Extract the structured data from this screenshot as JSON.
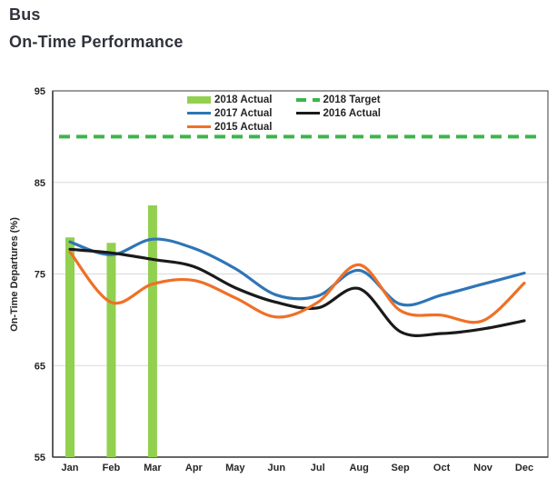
{
  "header": {
    "title": "Bus",
    "subtitle": "On-Time Performance"
  },
  "chart_data": {
    "type": "line",
    "title": "Bus On-Time Performance",
    "xlabel": "",
    "ylabel": "On-Time Departures (%)",
    "ylim": [
      55,
      95
    ],
    "yticks": [
      55,
      65,
      75,
      85,
      95
    ],
    "gridlines_y": [
      65,
      75,
      85
    ],
    "grid": "horizontal-only",
    "legend_position": "top-center",
    "categories": [
      "Jan",
      "Feb",
      "Mar",
      "Apr",
      "May",
      "Jun",
      "Jul",
      "Aug",
      "Sep",
      "Oct",
      "Nov",
      "Dec"
    ],
    "target": {
      "name": "2018 Target",
      "value": 90,
      "style": "dashed",
      "color": "#3cb54a"
    },
    "series": [
      {
        "name": "2018 Actual",
        "type": "bar",
        "color": "#92d050",
        "values": [
          79,
          78.4,
          82.5,
          null,
          null,
          null,
          null,
          null,
          null,
          null,
          null,
          null
        ]
      },
      {
        "name": "2017 Actual",
        "type": "line",
        "color": "#2e75b6",
        "values": [
          78.5,
          77.1,
          78.8,
          77.8,
          75.6,
          72.7,
          72.6,
          75.4,
          71.7,
          72.7,
          73.9,
          75.1
        ]
      },
      {
        "name": "2016 Actual",
        "type": "line",
        "color": "#1a1a1a",
        "values": [
          77.7,
          77.3,
          76.6,
          75.8,
          73.5,
          71.9,
          71.3,
          73.4,
          68.7,
          68.5,
          69.0,
          69.9
        ]
      },
      {
        "name": "2015 Actual",
        "type": "line",
        "color": "#ef7028",
        "values": [
          77.4,
          71.9,
          73.9,
          74.3,
          72.4,
          70.3,
          71.9,
          76.0,
          71.0,
          70.5,
          69.9,
          74.0
        ]
      }
    ]
  },
  "legend": {
    "columns": [
      [
        {
          "label": "2018 Actual",
          "marker": "bar",
          "color": "#92d050"
        },
        {
          "label": "2017 Actual",
          "marker": "line",
          "color": "#2e75b6"
        },
        {
          "label": "2015 Actual",
          "marker": "line",
          "color": "#ef7028"
        }
      ],
      [
        {
          "label": "2018 Target",
          "marker": "dashed",
          "color": "#3cb54a"
        },
        {
          "label": "2016 Actual",
          "marker": "line",
          "color": "#1a1a1a"
        }
      ]
    ]
  },
  "colors": {
    "grid": "#d9d9d9",
    "border": "#595959",
    "axis": "#3f3f3f",
    "tick_text": "#262626",
    "title_text": "#30333b"
  }
}
